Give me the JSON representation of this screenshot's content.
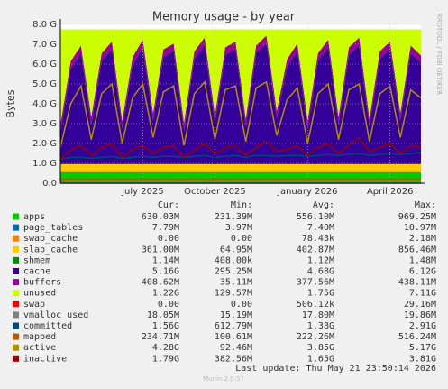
{
  "chart_data": {
    "type": "area",
    "title": "Memory usage - by year",
    "ylabel": "Bytes",
    "side_text": "RRDTOOL / TOBI OETIKER",
    "categories": [
      null,
      null,
      null,
      null,
      null,
      null,
      null,
      null,
      "July 2025",
      null,
      null,
      null,
      null,
      null,
      null,
      "October 2025",
      null,
      null,
      null,
      null,
      null,
      null,
      null,
      null,
      "January 2026",
      null,
      null,
      null,
      null,
      null,
      null,
      null,
      "April 2026",
      null,
      null,
      null
    ],
    "ylim": [
      0,
      8
    ],
    "yticks": [
      {
        "value": 0,
        "label": "0.0"
      },
      {
        "value": 1,
        "label": "1.0 G"
      },
      {
        "value": 2,
        "label": "2.0 G"
      },
      {
        "value": 3,
        "label": "3.0 G"
      },
      {
        "value": 4,
        "label": "4.0 G"
      },
      {
        "value": 5,
        "label": "5.0 G"
      },
      {
        "value": 6,
        "label": "6.0 G"
      },
      {
        "value": 7,
        "label": "7.0 G"
      },
      {
        "value": 8,
        "label": "8.0 G"
      }
    ],
    "grid": true,
    "legend_headers": [
      "Cur:",
      "Min:",
      "Avg:",
      "Max:"
    ],
    "series": [
      {
        "name": "apps",
        "color": "#00cc00",
        "kind": "area",
        "cur": "630.03M",
        "min": "231.39M",
        "avg": "556.10M",
        "max": "969.25M",
        "values": [
          0.55,
          0.55,
          0.55,
          0.55,
          0.55,
          0.55,
          0.55,
          0.55,
          0.55,
          0.55,
          0.55,
          0.55,
          0.55,
          0.55,
          0.55,
          0.55,
          0.55,
          0.55,
          0.55,
          0.55,
          0.55,
          0.55,
          0.55,
          0.55,
          0.55,
          0.55,
          0.55,
          0.55,
          0.55,
          0.55,
          0.55,
          0.55,
          0.55,
          0.55,
          0.55,
          0.55
        ]
      },
      {
        "name": "page_tables",
        "color": "#0066b3",
        "kind": "area",
        "cur": "7.79M",
        "min": "3.97M",
        "avg": "7.40M",
        "max": "10.97M",
        "values": [
          0.01,
          0.01,
          0.01,
          0.01,
          0.01,
          0.01,
          0.01,
          0.01,
          0.01,
          0.01,
          0.01,
          0.01,
          0.01,
          0.01,
          0.01,
          0.01,
          0.01,
          0.01,
          0.01,
          0.01,
          0.01,
          0.01,
          0.01,
          0.01,
          0.01,
          0.01,
          0.01,
          0.01,
          0.01,
          0.01,
          0.01,
          0.01,
          0.01,
          0.01,
          0.01,
          0.01
        ]
      },
      {
        "name": "swap_cache",
        "color": "#ff8000",
        "kind": "area",
        "cur": "0.00",
        "min": "0.00",
        "avg": "78.43k",
        "max": "2.18M",
        "values": [
          0,
          0,
          0,
          0,
          0,
          0,
          0,
          0,
          0,
          0,
          0,
          0,
          0,
          0,
          0,
          0,
          0,
          0,
          0,
          0,
          0,
          0,
          0,
          0,
          0,
          0,
          0,
          0,
          0,
          0,
          0,
          0,
          0,
          0,
          0,
          0
        ]
      },
      {
        "name": "slab_cache",
        "color": "#ffcc00",
        "kind": "area",
        "cur": "361.00M",
        "min": "64.95M",
        "avg": "402.87M",
        "max": "856.46M",
        "values": [
          0.4,
          0.4,
          0.4,
          0.4,
          0.4,
          0.4,
          0.4,
          0.4,
          0.4,
          0.4,
          0.4,
          0.4,
          0.4,
          0.4,
          0.4,
          0.4,
          0.4,
          0.4,
          0.4,
          0.4,
          0.4,
          0.4,
          0.4,
          0.4,
          0.4,
          0.4,
          0.4,
          0.4,
          0.4,
          0.4,
          0.4,
          0.4,
          0.4,
          0.4,
          0.4,
          0.4
        ]
      },
      {
        "name": "shmem",
        "color": "#008f00",
        "kind": "area",
        "cur": "1.14M",
        "min": "408.00k",
        "avg": "1.12M",
        "max": "1.48M",
        "values": [
          0,
          0,
          0,
          0,
          0,
          0,
          0,
          0,
          0,
          0,
          0,
          0,
          0,
          0,
          0,
          0,
          0,
          0,
          0,
          0,
          0,
          0,
          0,
          0,
          0,
          0,
          0,
          0,
          0,
          0,
          0,
          0,
          0,
          0,
          0,
          0
        ]
      },
      {
        "name": "cache",
        "color": "#330099",
        "kind": "area",
        "cur": "5.16G",
        "min": "295.25M",
        "avg": "4.68G",
        "max": "6.12G",
        "values": [
          1.6,
          4.8,
          5.6,
          2.0,
          5.2,
          5.8,
          1.8,
          5.0,
          5.9,
          2.2,
          5.4,
          5.7,
          1.7,
          5.3,
          6.0,
          2.1,
          5.5,
          5.8,
          1.9,
          5.6,
          6.1,
          2.3,
          4.9,
          5.7,
          1.8,
          5.2,
          5.9,
          2.0,
          5.5,
          6.0,
          1.9,
          5.3,
          5.8,
          2.2,
          5.6,
          5.1
        ]
      },
      {
        "name": "buffers",
        "color": "#990099",
        "kind": "area",
        "cur": "408.62M",
        "min": "35.11M",
        "avg": "377.56M",
        "max": "438.11M",
        "values": [
          0.38,
          0.38,
          0.38,
          0.38,
          0.38,
          0.38,
          0.38,
          0.38,
          0.38,
          0.38,
          0.38,
          0.38,
          0.38,
          0.38,
          0.38,
          0.38,
          0.38,
          0.38,
          0.38,
          0.38,
          0.38,
          0.38,
          0.38,
          0.38,
          0.38,
          0.38,
          0.38,
          0.38,
          0.38,
          0.38,
          0.38,
          0.38,
          0.38,
          0.38,
          0.38,
          0.38
        ]
      },
      {
        "name": "unused",
        "color": "#ccff00",
        "kind": "area",
        "cur": "1.22G",
        "min": "129.57M",
        "avg": "1.75G",
        "max": "7.11G",
        "values": [
          4.81,
          1.61,
          0.81,
          4.41,
          1.21,
          0.61,
          4.61,
          1.41,
          0.51,
          4.21,
          1.01,
          0.71,
          4.71,
          1.11,
          0.41,
          4.31,
          0.91,
          0.61,
          4.51,
          0.81,
          0.31,
          4.11,
          1.51,
          0.71,
          4.61,
          1.21,
          0.51,
          4.41,
          0.91,
          0.41,
          4.51,
          1.11,
          0.61,
          4.21,
          0.81,
          1.31
        ]
      },
      {
        "name": "swap",
        "color": "#ff0000",
        "kind": "line",
        "cur": "0.00",
        "min": "0.00",
        "avg": "506.12k",
        "max": "29.16M",
        "values": [
          0,
          0,
          0,
          0,
          0,
          0,
          0,
          0,
          0,
          0,
          0,
          0,
          0,
          0,
          0,
          0,
          0,
          0,
          0,
          0,
          0,
          0,
          0,
          0,
          0,
          0,
          0,
          0,
          0,
          0,
          0,
          0,
          0,
          0,
          0,
          0
        ]
      },
      {
        "name": "vmalloc_used",
        "color": "#808080",
        "kind": "line",
        "cur": "18.05M",
        "min": "15.19M",
        "avg": "17.80M",
        "max": "19.86M",
        "values": [
          0.02,
          0.02,
          0.02,
          0.02,
          0.02,
          0.02,
          0.02,
          0.02,
          0.02,
          0.02,
          0.02,
          0.02,
          0.02,
          0.02,
          0.02,
          0.02,
          0.02,
          0.02,
          0.02,
          0.02,
          0.02,
          0.02,
          0.02,
          0.02,
          0.02,
          0.02,
          0.02,
          0.02,
          0.02,
          0.02,
          0.02,
          0.02,
          0.02,
          0.02,
          0.02,
          0.02
        ]
      },
      {
        "name": "committed",
        "color": "#00487d",
        "kind": "line",
        "cur": "1.56G",
        "min": "612.79M",
        "avg": "1.38G",
        "max": "2.91G",
        "values": [
          1.2,
          1.3,
          1.3,
          1.25,
          1.3,
          1.35,
          1.25,
          1.3,
          1.35,
          1.3,
          1.35,
          1.35,
          1.3,
          1.35,
          1.4,
          1.3,
          1.35,
          1.4,
          1.3,
          1.4,
          1.4,
          1.35,
          1.4,
          1.4,
          1.35,
          1.4,
          1.45,
          1.4,
          1.45,
          1.5,
          1.4,
          1.45,
          1.5,
          1.45,
          1.5,
          1.55
        ]
      },
      {
        "name": "mapped",
        "color": "#b35a00",
        "kind": "line",
        "cur": "234.71M",
        "min": "100.61M",
        "avg": "222.26M",
        "max": "516.24M",
        "values": [
          0.2,
          0.22,
          0.22,
          0.2,
          0.22,
          0.23,
          0.2,
          0.22,
          0.23,
          0.2,
          0.22,
          0.23,
          0.2,
          0.22,
          0.23,
          0.21,
          0.22,
          0.23,
          0.21,
          0.22,
          0.23,
          0.21,
          0.22,
          0.23,
          0.21,
          0.22,
          0.23,
          0.21,
          0.22,
          0.23,
          0.21,
          0.22,
          0.23,
          0.21,
          0.22,
          0.23
        ]
      },
      {
        "name": "active",
        "color": "#b38f00",
        "kind": "line",
        "cur": "4.28G",
        "min": "92.46M",
        "avg": "3.85G",
        "max": "5.17G",
        "values": [
          1.8,
          4.0,
          4.9,
          2.2,
          4.5,
          5.0,
          2.0,
          4.3,
          5.0,
          2.3,
          4.6,
          4.9,
          1.9,
          4.5,
          5.1,
          2.2,
          4.7,
          4.9,
          2.1,
          4.8,
          5.1,
          2.4,
          4.2,
          4.8,
          2.0,
          4.5,
          5.0,
          2.2,
          4.7,
          5.0,
          2.1,
          4.5,
          4.9,
          2.3,
          4.7,
          4.3
        ]
      },
      {
        "name": "inactive",
        "color": "#990000",
        "kind": "line",
        "cur": "1.79G",
        "min": "382.56M",
        "avg": "1.65G",
        "max": "3.81G",
        "values": [
          1.2,
          1.7,
          1.9,
          1.4,
          1.8,
          2.0,
          1.3,
          1.7,
          1.9,
          1.5,
          1.8,
          1.9,
          1.3,
          1.7,
          2.0,
          1.5,
          1.8,
          1.9,
          1.4,
          1.8,
          2.1,
          1.6,
          1.7,
          1.9,
          1.4,
          1.8,
          2.0,
          1.5,
          1.9,
          2.3,
          1.6,
          1.8,
          2.0,
          1.5,
          1.9,
          1.8
        ]
      }
    ],
    "last_update": "Last update: Thu May 21 23:50:14 2026",
    "footer": "Munin 2.0.57"
  }
}
